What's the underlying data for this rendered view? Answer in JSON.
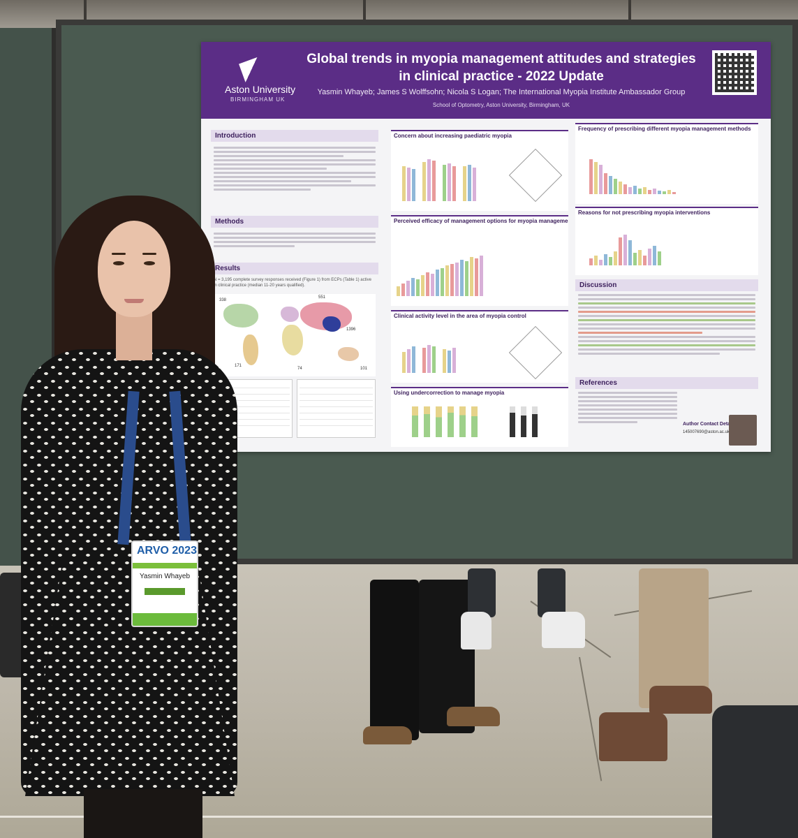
{
  "photo": {
    "setting": "conference poster hall",
    "poster": {
      "institution_logo": "Aston University",
      "institution_sub": "BIRMINGHAM UK",
      "title": "Global trends in myopia management attitudes and strategies in clinical practice - 2022 Update",
      "authors": "Yasmin Whayeb; James S Wolffsohn; Nicola S Logan; The International Myopia Institute Ambassador Group",
      "affiliation": "School of Optometry, Aston University, Birmingham, UK",
      "sections": {
        "introduction": "Introduction",
        "methods": "Methods",
        "results": "Results",
        "results_text": "N = 3,195 complete survey responses received (Figure 1) from ECPs (Table 1) active in clinical practice (median 11-20 years qualified).",
        "concern": "Concern about increasing paediatric myopia",
        "efficacy": "Perceived efficacy of management options for myopia management",
        "activity": "Clinical activity level in the area of myopia control",
        "undercorrection": "Using undercorrection to manage myopia",
        "frequency": "Frequency of prescribing different myopia management methods",
        "reasons": "Reasons for not prescribing myopia interventions",
        "discussion": "Discussion",
        "references": "References"
      },
      "map_numbers": [
        "338",
        "551",
        "1396",
        "171",
        "74",
        "101"
      ],
      "contact_label": "Author Contact Details:",
      "contact_email": "145007690@aston.ac.uk"
    },
    "badge": {
      "brand": "ARVO 2023",
      "name": "Yasmin Whayeb"
    },
    "colors": {
      "poster_header": "#5b2d86",
      "board": "#4a5a50",
      "badge_green": "#6cbb3c",
      "lanyard": "#2a4c8c"
    }
  }
}
